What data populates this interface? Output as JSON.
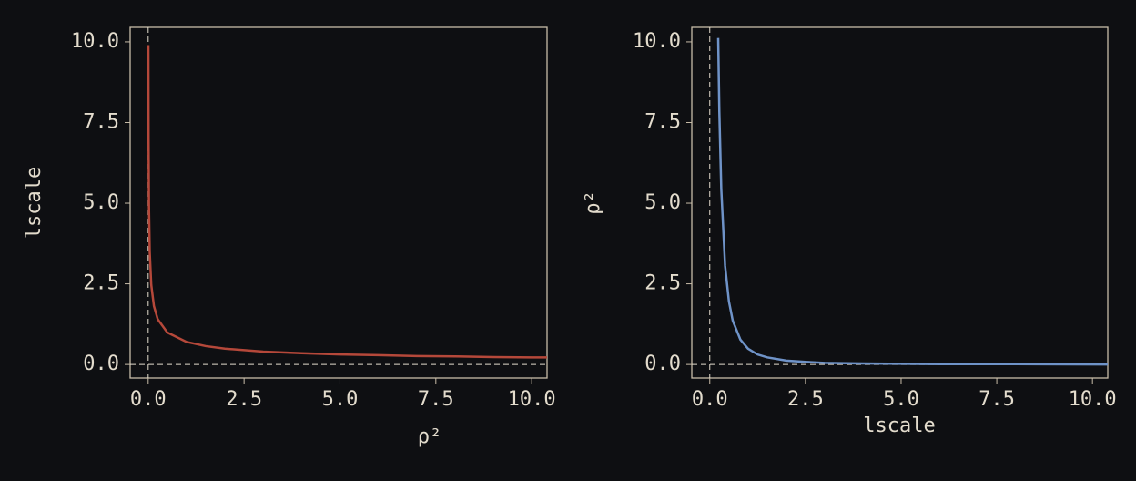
{
  "chart_data": [
    {
      "type": "line",
      "x_label": "ρ²",
      "y_label": "lscale",
      "x": [
        0.005,
        0.01,
        0.02,
        0.04,
        0.08,
        0.15,
        0.25,
        0.5,
        1,
        1.5,
        2,
        3,
        4,
        5,
        6,
        7,
        8,
        9,
        10,
        10.5
      ],
      "series": [
        {
          "name": "lscale",
          "color": "#b5483a",
          "values": [
            9.9,
            7.0,
            4.95,
            3.5,
            2.47,
            1.81,
            1.4,
            0.99,
            0.7,
            0.57,
            0.49,
            0.4,
            0.35,
            0.31,
            0.29,
            0.26,
            0.25,
            0.23,
            0.22,
            0.22
          ]
        }
      ],
      "xlim": [
        -0.47,
        10.4
      ],
      "ylim": [
        -0.42,
        10.45
      ],
      "xticks": [
        {
          "value": 0,
          "label": "0.0"
        },
        2.5,
        {
          "value": 5,
          "label": "5.0"
        },
        7.5,
        {
          "value": 10,
          "label": "10.0"
        }
      ],
      "yticks": [
        {
          "value": 0,
          "label": "0.0"
        },
        2.5,
        {
          "value": 5,
          "label": "5.0"
        },
        7.5,
        {
          "value": 10,
          "label": "10.0"
        }
      ],
      "hline": 0,
      "vline": 0
    },
    {
      "type": "line",
      "x_label": "lscale",
      "y_label": "ρ²",
      "x": [
        0.22,
        0.25,
        0.3,
        0.4,
        0.5,
        0.6,
        0.8,
        1,
        1.25,
        1.5,
        2,
        2.5,
        3,
        4,
        5,
        6,
        8,
        10.5
      ],
      "series": [
        {
          "name": "ρ²",
          "color": "#6f93c8",
          "values": [
            10.12,
            7.84,
            5.44,
            3.06,
            1.96,
            1.36,
            0.77,
            0.49,
            0.31,
            0.22,
            0.12,
            0.08,
            0.05,
            0.03,
            0.02,
            0.01,
            0.01,
            0.0
          ]
        }
      ],
      "xlim": [
        -0.47,
        10.4
      ],
      "ylim": [
        -0.42,
        10.45
      ],
      "xticks": [
        {
          "value": 0,
          "label": "0.0"
        },
        2.5,
        {
          "value": 5,
          "label": "5.0"
        },
        7.5,
        {
          "value": 10,
          "label": "10.0"
        }
      ],
      "yticks": [
        {
          "value": 0,
          "label": "0.0"
        },
        2.5,
        {
          "value": 5,
          "label": "5.0"
        },
        7.5,
        {
          "value": 10,
          "label": "10.0"
        }
      ],
      "hline": 0,
      "vline": 0
    }
  ]
}
